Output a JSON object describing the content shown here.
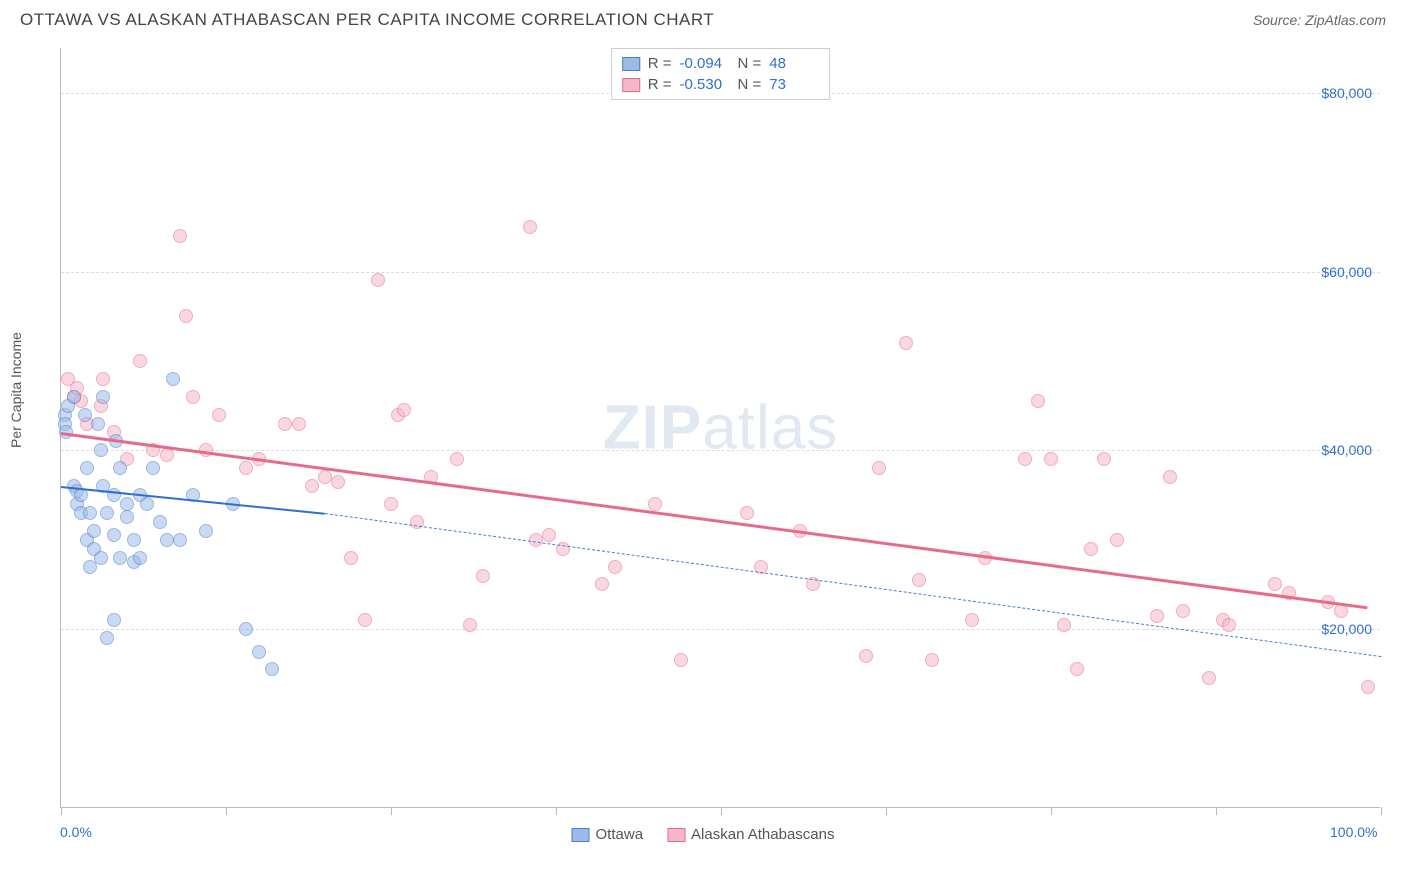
{
  "header": {
    "title": "OTTAWA VS ALASKAN ATHABASCAN PER CAPITA INCOME CORRELATION CHART",
    "source_prefix": "Source: ",
    "source_name": "ZipAtlas.com"
  },
  "watermark": {
    "zip": "ZIP",
    "atlas": "atlas"
  },
  "chart": {
    "type": "scatter",
    "background_color": "#ffffff",
    "grid_color": "#dddddd",
    "axis_color": "#bbbbbb",
    "y_axis_label": "Per Capita Income",
    "y_label_color": "#555555",
    "tick_label_color": "#2f6fd0",
    "tick_fontsize": 14,
    "xlim": [
      0,
      100
    ],
    "ylim": [
      0,
      85000
    ],
    "x_ticks": [
      0,
      12.5,
      25,
      37.5,
      50,
      62.5,
      75,
      87.5,
      100
    ],
    "x_tick_labels": {
      "0": "0.0%",
      "100": "100.0%"
    },
    "y_grid": [
      20000,
      40000,
      60000,
      80000
    ],
    "y_tick_labels": {
      "20000": "$20,000",
      "40000": "$40,000",
      "60000": "$60,000",
      "80000": "$80,000"
    },
    "point_radius": 7,
    "point_opacity": 0.55,
    "series": [
      {
        "id": "ottawa",
        "label": "Ottawa",
        "fill_color": "#9dbbe8",
        "stroke_color": "#4a7ecb",
        "R": "-0.094",
        "N": "48",
        "trend": {
          "x1": 0,
          "y1": 36000,
          "x2": 20,
          "y2": 33000,
          "color": "#2f6fd0",
          "width": 2
        },
        "trend_extrapolate": {
          "x1": 20,
          "y1": 33000,
          "x2": 100,
          "y2": 17000,
          "color": "#4a7ecb",
          "width": 1.5
        },
        "points": [
          [
            0.3,
            44000
          ],
          [
            0.3,
            43000
          ],
          [
            0.5,
            45000
          ],
          [
            0.4,
            42000
          ],
          [
            1.0,
            46000
          ],
          [
            1.0,
            36000
          ],
          [
            1.2,
            34000
          ],
          [
            1.2,
            35500
          ],
          [
            1.5,
            35000
          ],
          [
            1.5,
            33000
          ],
          [
            1.8,
            44000
          ],
          [
            2.0,
            30000
          ],
          [
            2.0,
            38000
          ],
          [
            2.2,
            27000
          ],
          [
            2.2,
            33000
          ],
          [
            2.5,
            31000
          ],
          [
            2.5,
            29000
          ],
          [
            2.8,
            43000
          ],
          [
            3.0,
            28000
          ],
          [
            3.0,
            40000
          ],
          [
            3.2,
            36000
          ],
          [
            3.2,
            46000
          ],
          [
            3.5,
            33000
          ],
          [
            3.5,
            19000
          ],
          [
            4.0,
            21000
          ],
          [
            4.0,
            35000
          ],
          [
            4.0,
            30500
          ],
          [
            4.2,
            41000
          ],
          [
            4.5,
            28000
          ],
          [
            4.5,
            38000
          ],
          [
            5.0,
            34000
          ],
          [
            5.0,
            32500
          ],
          [
            5.5,
            30000
          ],
          [
            5.5,
            27500
          ],
          [
            6.0,
            35000
          ],
          [
            6.0,
            28000
          ],
          [
            6.5,
            34000
          ],
          [
            7.0,
            38000
          ],
          [
            7.5,
            32000
          ],
          [
            8.0,
            30000
          ],
          [
            8.5,
            48000
          ],
          [
            9.0,
            30000
          ],
          [
            10.0,
            35000
          ],
          [
            11.0,
            31000
          ],
          [
            13.0,
            34000
          ],
          [
            14.0,
            20000
          ],
          [
            15.0,
            17500
          ],
          [
            16.0,
            15500
          ]
        ]
      },
      {
        "id": "athabascan",
        "label": "Alaskan Athabascans",
        "fill_color": "#f5b8c8",
        "stroke_color": "#e86a8a",
        "R": "-0.530",
        "N": "73",
        "trend": {
          "x1": 0,
          "y1": 42000,
          "x2": 99,
          "y2": 22500,
          "color": "#e86a8a",
          "width": 2.5
        },
        "points": [
          [
            0.5,
            48000
          ],
          [
            1.0,
            46000
          ],
          [
            1.2,
            47000
          ],
          [
            1.5,
            45500
          ],
          [
            2.0,
            43000
          ],
          [
            3.0,
            45000
          ],
          [
            3.2,
            48000
          ],
          [
            4.0,
            42000
          ],
          [
            5.0,
            39000
          ],
          [
            6.0,
            50000
          ],
          [
            7.0,
            40000
          ],
          [
            8.0,
            39500
          ],
          [
            9.0,
            64000
          ],
          [
            9.5,
            55000
          ],
          [
            10.0,
            46000
          ],
          [
            11.0,
            40000
          ],
          [
            12.0,
            44000
          ],
          [
            14.0,
            38000
          ],
          [
            15.0,
            39000
          ],
          [
            17.0,
            43000
          ],
          [
            18.0,
            43000
          ],
          [
            19.0,
            36000
          ],
          [
            20.0,
            37000
          ],
          [
            21.0,
            36500
          ],
          [
            22.0,
            28000
          ],
          [
            23.0,
            21000
          ],
          [
            24.0,
            59000
          ],
          [
            25.0,
            34000
          ],
          [
            25.5,
            44000
          ],
          [
            26.0,
            44500
          ],
          [
            27.0,
            32000
          ],
          [
            28.0,
            37000
          ],
          [
            30.0,
            39000
          ],
          [
            31.0,
            20500
          ],
          [
            32.0,
            26000
          ],
          [
            35.5,
            65000
          ],
          [
            36.0,
            30000
          ],
          [
            37.0,
            30500
          ],
          [
            38.0,
            29000
          ],
          [
            41.0,
            25000
          ],
          [
            42.0,
            27000
          ],
          [
            45.0,
            34000
          ],
          [
            47.0,
            16500
          ],
          [
            52.0,
            33000
          ],
          [
            53.0,
            27000
          ],
          [
            56.0,
            31000
          ],
          [
            57.0,
            25000
          ],
          [
            61.0,
            17000
          ],
          [
            62.0,
            38000
          ],
          [
            64.0,
            52000
          ],
          [
            65.0,
            25500
          ],
          [
            66.0,
            16500
          ],
          [
            69.0,
            21000
          ],
          [
            70.0,
            28000
          ],
          [
            73.0,
            39000
          ],
          [
            74.0,
            45500
          ],
          [
            75.0,
            39000
          ],
          [
            76.0,
            20500
          ],
          [
            77.0,
            15500
          ],
          [
            78.0,
            29000
          ],
          [
            79.0,
            39000
          ],
          [
            80.0,
            30000
          ],
          [
            83.0,
            21500
          ],
          [
            84.0,
            37000
          ],
          [
            85.0,
            22000
          ],
          [
            87.0,
            14500
          ],
          [
            88.0,
            21000
          ],
          [
            88.5,
            20500
          ],
          [
            92.0,
            25000
          ],
          [
            93.0,
            24000
          ],
          [
            96.0,
            23000
          ],
          [
            97.0,
            22000
          ],
          [
            99.0,
            13500
          ]
        ]
      }
    ],
    "legend_top": {
      "r_label": "R =",
      "n_label": "N ="
    }
  }
}
